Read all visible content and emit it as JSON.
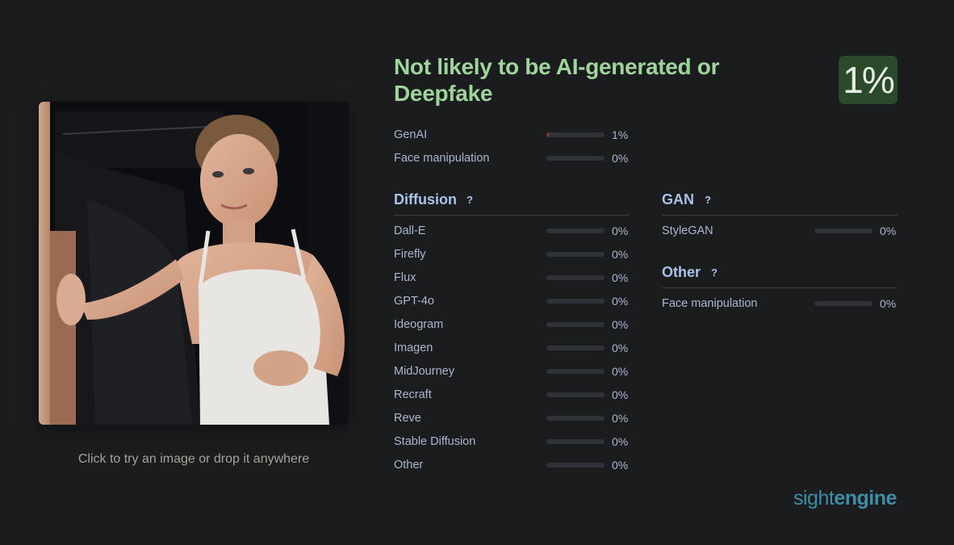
{
  "upload": {
    "hint": "Click to try an image or drop it anywhere"
  },
  "result": {
    "title": "Not likely to be AI-generated or Deepfake",
    "score": "1%"
  },
  "summary": [
    {
      "label": "GenAI",
      "value": "1%",
      "fill_fraction": 0.01
    },
    {
      "label": "Face manipulation",
      "value": "0%",
      "fill_fraction": 0
    }
  ],
  "diffusion": {
    "title": "Diffusion",
    "help": "?",
    "items": [
      {
        "label": "Dall-E",
        "value": "0%"
      },
      {
        "label": "Firefly",
        "value": "0%"
      },
      {
        "label": "Flux",
        "value": "0%"
      },
      {
        "label": "GPT-4o",
        "value": "0%"
      },
      {
        "label": "Ideogram",
        "value": "0%"
      },
      {
        "label": "Imagen",
        "value": "0%"
      },
      {
        "label": "MidJourney",
        "value": "0%"
      },
      {
        "label": "Recraft",
        "value": "0%"
      },
      {
        "label": "Reve",
        "value": "0%"
      },
      {
        "label": "Stable Diffusion",
        "value": "0%"
      },
      {
        "label": "Other",
        "value": "0%"
      }
    ]
  },
  "gan": {
    "title": "GAN",
    "help": "?",
    "items": [
      {
        "label": "StyleGAN",
        "value": "0%"
      }
    ]
  },
  "other": {
    "title": "Other",
    "help": "?",
    "items": [
      {
        "label": "Face manipulation",
        "value": "0%"
      }
    ]
  },
  "brand": {
    "light": "sight",
    "bold": "engine"
  },
  "colors": {
    "verdict_green": "#9fd49c",
    "badge_bg": "#2b4a2b",
    "section_blue": "#a9c2ea",
    "brand_teal": "#3e8ea8"
  }
}
